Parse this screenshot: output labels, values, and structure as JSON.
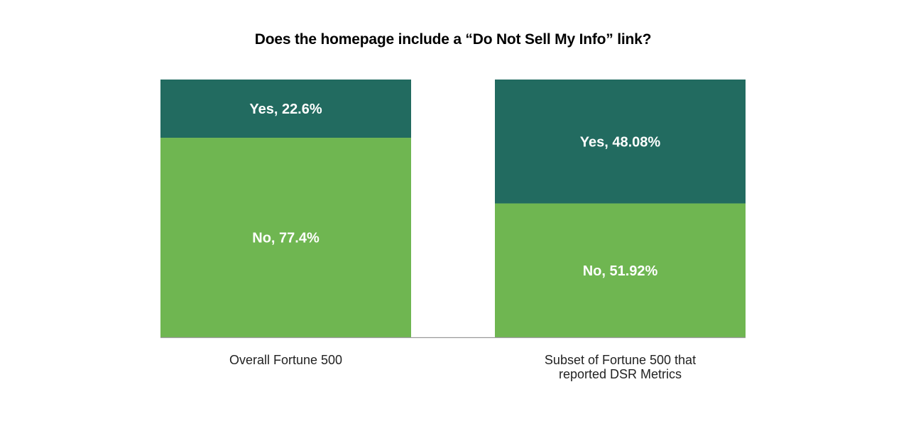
{
  "chart_data": {
    "type": "bar",
    "stacked": true,
    "normalized_percent": true,
    "title": "Does the homepage include a “Do Not Sell My Info” link?",
    "xlabel": "",
    "ylabel": "",
    "ylim": [
      0,
      100
    ],
    "grid": false,
    "categories": [
      [
        "Overall Fortune 500"
      ],
      [
        "Subset of Fortune 500 that",
        "reported DSR Metrics"
      ]
    ],
    "series": [
      {
        "key": "no",
        "values": [
          77.4,
          51.92
        ],
        "color": "#6fb651",
        "labels": [
          "No, 77.4%",
          "No, 51.92%"
        ]
      },
      {
        "key": "yes",
        "values": [
          22.6,
          48.08
        ],
        "color": "#226b60",
        "labels": [
          "Yes, 22.6%",
          "Yes, 48.08%"
        ]
      }
    ],
    "baseline_color": "#9a9a9a"
  }
}
